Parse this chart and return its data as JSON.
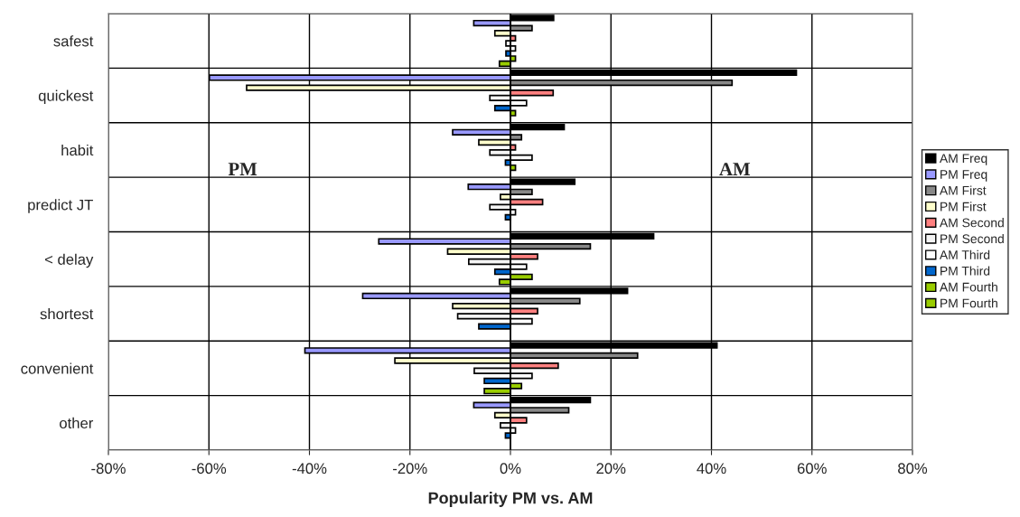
{
  "chart_data": {
    "type": "bar",
    "orientation": "horizontal",
    "xlabel": "Popularity PM vs. AM",
    "categories": [
      "safest",
      "quickest",
      "habit",
      "predict JT",
      "< delay",
      "shortest",
      "convenient",
      "other"
    ],
    "series": [
      {
        "name": "AM Freq",
        "color": "#000000",
        "values": [
          8.6,
          56.9,
          10.7,
          12.8,
          28.5,
          23.3,
          41.1,
          15.9
        ]
      },
      {
        "name": "PM Freq",
        "color": "#9999ff",
        "values": [
          -7.3,
          -59.9,
          -11.5,
          -8.4,
          -26.2,
          -29.4,
          -40.9,
          -7.3
        ]
      },
      {
        "name": "AM First",
        "color": "#888888",
        "values": [
          4.3,
          44.1,
          2.2,
          4.3,
          15.9,
          13.8,
          25.3,
          11.6
        ]
      },
      {
        "name": "PM First",
        "color": "#ffffcc",
        "values": [
          -3.1,
          -52.5,
          -6.3,
          -2.0,
          -12.5,
          -11.5,
          -23.0,
          -3.1
        ]
      },
      {
        "name": "AM Second",
        "color": "#ff8080",
        "values": [
          1.0,
          8.5,
          1.0,
          6.4,
          5.4,
          5.4,
          9.5,
          3.2
        ]
      },
      {
        "name": "PM Second",
        "color": "#f4f4f4",
        "values": [
          -0.9,
          -4.1,
          -4.1,
          -4.1,
          -8.3,
          -10.5,
          -7.2,
          -2.0
        ]
      },
      {
        "name": "AM Third",
        "color": "#ffffff",
        "values": [
          1.0,
          3.2,
          4.3,
          1.0,
          3.2,
          4.3,
          4.3,
          1.0
        ]
      },
      {
        "name": "PM Third",
        "color": "#0066cc",
        "values": [
          -0.9,
          -3.1,
          -1.0,
          -1.0,
          -3.1,
          -6.3,
          -5.2,
          -1.0
        ]
      },
      {
        "name": "AM Fourth",
        "color": "#99cc00",
        "values": [
          1.0,
          1.0,
          1.0,
          null,
          4.3,
          null,
          2.2,
          null
        ]
      },
      {
        "name": "PM Fourth",
        "color": "#99cc00",
        "values": [
          -2.2,
          null,
          null,
          null,
          -2.2,
          null,
          -5.2,
          null
        ]
      }
    ],
    "xlim": [
      -80,
      80
    ],
    "xticks": [
      {
        "value": -80,
        "label": "-80%"
      },
      {
        "value": -60,
        "label": "-60%"
      },
      {
        "value": -40,
        "label": "-40%"
      },
      {
        "value": -20,
        "label": "-20%"
      },
      {
        "value": 0,
        "label": "0%"
      },
      {
        "value": 20,
        "label": "20%"
      },
      {
        "value": 40,
        "label": "40%"
      },
      {
        "value": 60,
        "label": "60%"
      },
      {
        "value": 80,
        "label": "80%"
      }
    ],
    "annotations": [
      "PM",
      "AM"
    ],
    "grid": true,
    "legend": "right"
  }
}
